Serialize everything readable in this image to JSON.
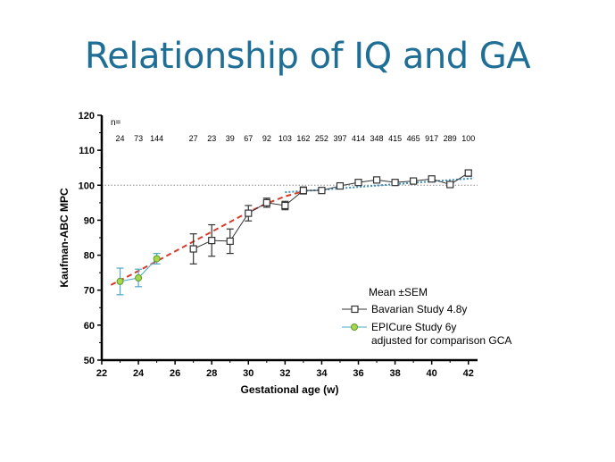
{
  "slide": {
    "title": "Relationship of IQ and GA"
  },
  "chart_data": {
    "type": "line",
    "xlabel": "Gestational age (w)",
    "ylabel": "Kaufman-ABC MPC",
    "xlim": [
      22,
      42.5
    ],
    "ylim": [
      50,
      120
    ],
    "xticks": [
      22,
      24,
      26,
      28,
      30,
      32,
      34,
      36,
      38,
      40,
      42
    ],
    "yticks": [
      50,
      60,
      70,
      80,
      90,
      100,
      110,
      120
    ],
    "n_label": "n=",
    "n_counts": [
      {
        "x": 23,
        "n": "24"
      },
      {
        "x": 24,
        "n": "73"
      },
      {
        "x": 25,
        "n": "144"
      },
      {
        "x": 27,
        "n": "27"
      },
      {
        "x": 28,
        "n": "23"
      },
      {
        "x": 29,
        "n": "39"
      },
      {
        "x": 30,
        "n": "67"
      },
      {
        "x": 31,
        "n": "92"
      },
      {
        "x": 32,
        "n": "103"
      },
      {
        "x": 33,
        "n": "162"
      },
      {
        "x": 34,
        "n": "252"
      },
      {
        "x": 35,
        "n": "397"
      },
      {
        "x": 36,
        "n": "414"
      },
      {
        "x": 37,
        "n": "348"
      },
      {
        "x": 38,
        "n": "415"
      },
      {
        "x": 39,
        "n": "465"
      },
      {
        "x": 40,
        "n": "917"
      },
      {
        "x": 41,
        "n": "289"
      },
      {
        "x": 42,
        "n": "100"
      }
    ],
    "reference_line": 100,
    "series": [
      {
        "name": "Bavarian Study 4.8y",
        "color": "#333333",
        "marker": "square",
        "x": [
          27,
          28,
          29,
          30,
          31,
          32,
          33,
          34,
          35,
          36,
          37,
          38,
          39,
          40,
          41,
          42
        ],
        "y": [
          81.8,
          84.2,
          84,
          92,
          95,
          94.2,
          98.5,
          98.5,
          99.8,
          100.8,
          101.5,
          100.8,
          101.2,
          101.8,
          100.2,
          103.5
        ],
        "err": [
          4.3,
          4.5,
          3.5,
          2.2,
          1.3,
          1.2,
          1,
          0.7,
          0.5,
          0.5,
          0.6,
          0.5,
          0.5,
          0.5,
          0.5,
          0.9
        ]
      },
      {
        "name": "EPICure Study 6y",
        "name2": "adjusted for comparison GCA",
        "color": "#4fa8c4",
        "marker": "circle",
        "marker_fill": "#a8d84a",
        "x": [
          23,
          24,
          25
        ],
        "y": [
          72.5,
          73.5,
          79
        ],
        "err": [
          3.8,
          2.5,
          1.5
        ]
      }
    ],
    "trend_lines": [
      {
        "color": "#d83a2a",
        "x": [
          22.5,
          23,
          24,
          25,
          26,
          27,
          28,
          29,
          30,
          31,
          32,
          33
        ],
        "y": [
          71.5,
          72.8,
          75.5,
          78.3,
          81.1,
          83.9,
          86.7,
          89.5,
          92.3,
          94.8,
          96.8,
          98.3
        ]
      },
      {
        "color": "#3e8fc0",
        "x": [
          32,
          34,
          36,
          38,
          40,
          42.3
        ],
        "y": [
          98,
          98.7,
          99.5,
          100.3,
          101.1,
          102
        ]
      }
    ],
    "legend": {
      "title": "Mean ±SEM",
      "position": "bottom-right"
    }
  }
}
